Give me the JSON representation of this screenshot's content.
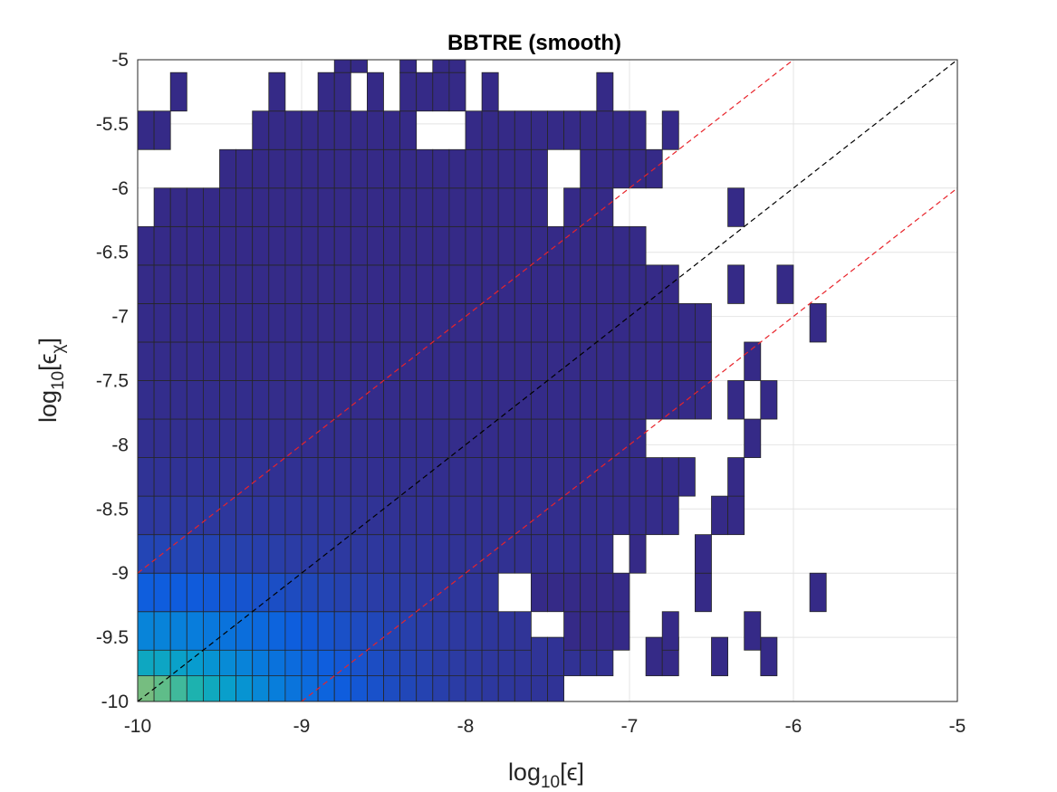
{
  "chart_data": {
    "type": "heatmap",
    "title": "BBTRE (smooth)",
    "xlabel": {
      "base": "log",
      "sub": "10",
      "arg": "[ϵ]"
    },
    "ylabel": {
      "base": "log",
      "sub": "10",
      "arg_open": "[ϵ",
      "arg_sub": "χ",
      "arg_close": "]"
    },
    "xlim": [
      -10,
      -5
    ],
    "ylim": [
      -10,
      -5
    ],
    "xticks": [
      -10,
      -9,
      -8,
      -7,
      -6,
      -5
    ],
    "yticks": [
      -5,
      -5.5,
      -6,
      -6.5,
      -7,
      -7.5,
      -8,
      -8.5,
      -9,
      -9.5,
      -10
    ],
    "grid": true,
    "colormap": "parula",
    "bin_width_x": 0.1,
    "bin_height_y": 0.3,
    "reference_lines": [
      {
        "slope": 1,
        "intercept": 0,
        "color": "#000000",
        "style": "dashed"
      },
      {
        "slope": 1,
        "intercept": 1,
        "color": "#e8232a",
        "style": "dashed"
      },
      {
        "slope": 1,
        "intercept": -1,
        "color": "#e8232a",
        "style": "dashed"
      }
    ],
    "rows": [
      {
        "y": -10.0,
        "cells": [
          [
            -10.0,
            -7.4,
            "gradient"
          ]
        ]
      },
      {
        "y": -9.8,
        "cells": [
          [
            -10.0,
            -7.1,
            "gradient"
          ],
          [
            -6.9,
            -6.8,
            "dark"
          ],
          [
            -6.8,
            -6.7,
            "dark"
          ],
          [
            -6.5,
            -6.4,
            "dark"
          ],
          [
            -6.2,
            -6.1,
            "dark"
          ]
        ]
      },
      {
        "y": -9.6,
        "cells": [
          [
            -10.0,
            -7.6,
            "gradient"
          ],
          [
            -7.4,
            -7.0,
            "dark"
          ],
          [
            -6.8,
            -6.7,
            "dark"
          ],
          [
            -6.3,
            -6.2,
            "dark"
          ]
        ]
      },
      {
        "y": -9.3,
        "cells": [
          [
            -10.0,
            -7.8,
            "gradient"
          ],
          [
            -7.6,
            -7.0,
            "dark"
          ],
          [
            -6.6,
            -6.5,
            "dark"
          ],
          [
            -5.9,
            -5.8,
            "dark"
          ]
        ]
      },
      {
        "y": -9.0,
        "cells": [
          [
            -10.0,
            -7.1,
            "gradient"
          ],
          [
            -7.0,
            -6.9,
            "dark"
          ],
          [
            -6.6,
            -6.5,
            "dark"
          ]
        ]
      },
      {
        "y": -8.7,
        "cells": [
          [
            -10.0,
            -6.7,
            "gradient"
          ],
          [
            -6.5,
            -6.3,
            "dark"
          ]
        ]
      },
      {
        "y": -8.4,
        "cells": [
          [
            -10.0,
            -6.6,
            "gradient"
          ],
          [
            -6.4,
            -6.3,
            "dark"
          ]
        ]
      },
      {
        "y": -8.1,
        "cells": [
          [
            -10.0,
            -6.9,
            "gradient"
          ],
          [
            -6.3,
            -6.2,
            "dark"
          ]
        ]
      },
      {
        "y": -7.8,
        "cells": [
          [
            -10.0,
            -6.5,
            "gradient"
          ],
          [
            -6.4,
            -6.3,
            "dark"
          ],
          [
            -6.2,
            -6.1,
            "dark"
          ]
        ]
      },
      {
        "y": -7.5,
        "cells": [
          [
            -10.0,
            -6.5,
            "gradient"
          ],
          [
            -6.3,
            -6.2,
            "dark"
          ]
        ]
      },
      {
        "y": -7.2,
        "cells": [
          [
            -10.0,
            -6.5,
            "gradient"
          ],
          [
            -5.9,
            -5.8,
            "dark"
          ]
        ]
      },
      {
        "y": -6.9,
        "cells": [
          [
            -10.0,
            -6.7,
            "gradient"
          ],
          [
            -6.4,
            -6.3,
            "dark"
          ],
          [
            -6.1,
            -6.0,
            "dark"
          ]
        ]
      },
      {
        "y": -6.6,
        "cells": [
          [
            -10.0,
            -6.9,
            "gradient"
          ]
        ]
      },
      {
        "y": -6.3,
        "cells": [
          [
            -9.9,
            -7.5,
            "gradient"
          ],
          [
            -7.4,
            -7.1,
            "dark"
          ],
          [
            -6.4,
            -6.3,
            "dark"
          ]
        ]
      },
      {
        "y": -6.0,
        "cells": [
          [
            -9.5,
            -7.5,
            "gradient"
          ],
          [
            -7.3,
            -6.8,
            "dark"
          ]
        ]
      },
      {
        "y": -5.7,
        "cells": [
          [
            -10.0,
            -9.8,
            "dark"
          ],
          [
            -9.3,
            -8.3,
            "gradient"
          ],
          [
            -8.0,
            -6.9,
            "dark"
          ],
          [
            -6.8,
            -6.7,
            "dark"
          ]
        ]
      },
      {
        "y": -5.4,
        "cells": [
          [
            -9.8,
            -9.7,
            "dark"
          ],
          [
            -9.2,
            -9.1,
            "dark"
          ],
          [
            -8.9,
            -8.7,
            "dark"
          ],
          [
            -8.6,
            -8.5,
            "dark"
          ],
          [
            -8.4,
            -8.0,
            "dark"
          ],
          [
            -7.9,
            -7.8,
            "dark"
          ],
          [
            -7.2,
            -7.1,
            "dark"
          ]
        ]
      },
      {
        "y": -5.1,
        "cells": [
          [
            -8.8,
            -8.6,
            "dark"
          ],
          [
            -8.7,
            -8.6,
            "dark"
          ],
          [
            -8.4,
            -8.3,
            "dark"
          ],
          [
            -8.2,
            -8.0,
            "dark"
          ]
        ]
      }
    ]
  }
}
